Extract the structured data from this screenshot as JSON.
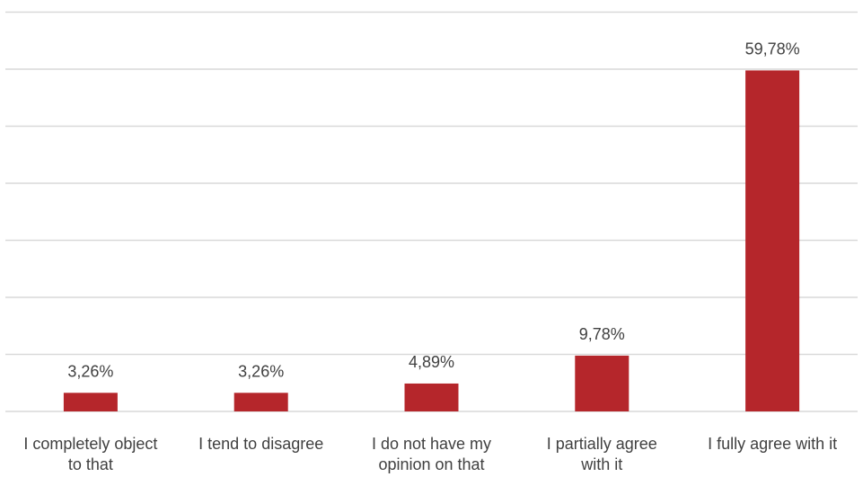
{
  "chart_data": {
    "type": "bar",
    "title": "",
    "xlabel": "",
    "ylabel": "",
    "categories": [
      [
        "I completely object",
        "to that"
      ],
      [
        "I tend to disagree"
      ],
      [
        "I do not have my",
        "opinion on that"
      ],
      [
        "I partially agree",
        "with it"
      ],
      [
        "I fully agree with it"
      ]
    ],
    "values": [
      3.26,
      3.26,
      4.89,
      9.78,
      59.78
    ],
    "data_labels": [
      "3,26%",
      "3,26%",
      "4,89%",
      "9,78%",
      "59,78%"
    ],
    "ylim": [
      0,
      70
    ],
    "gridlines": [
      10,
      20,
      30,
      40,
      50,
      60,
      70
    ],
    "grid": true,
    "y_axis_labels_visible": false,
    "legend": "none",
    "bar_color": "#b5262b",
    "grid_color": "#d9d9d9",
    "text_color": "#404040"
  }
}
